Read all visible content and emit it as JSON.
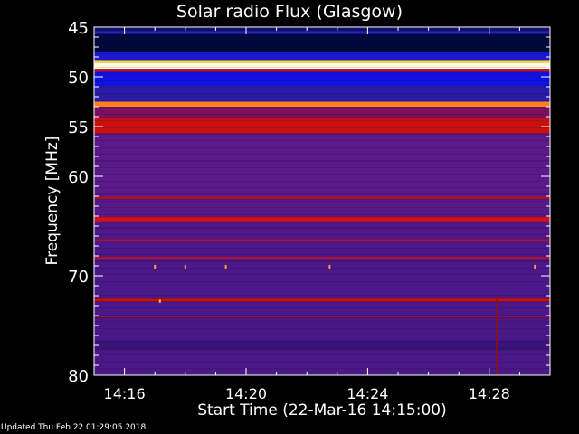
{
  "chart_data": {
    "type": "heatmap",
    "title": "Solar radio Flux (Glasgow)",
    "xlabel": "Start Time (22-Mar-16 14:15:00)",
    "ylabel": "Frequency [MHz]",
    "xlim": [
      "14:15",
      "14:30"
    ],
    "ylim": [
      45,
      80
    ],
    "y_reversed": true,
    "xticks": [
      "14:16",
      "14:20",
      "14:24",
      "14:28"
    ],
    "yticks": [
      45,
      50,
      55,
      60,
      70,
      80
    ],
    "bands": [
      {
        "f0": 45.0,
        "f1": 45.4,
        "color": "#10106a"
      },
      {
        "f0": 45.4,
        "f1": 45.7,
        "color": "#2424c8"
      },
      {
        "f0": 45.7,
        "f1": 47.5,
        "color": "#00083c"
      },
      {
        "f0": 47.5,
        "f1": 48.3,
        "color": "#1a1ad0"
      },
      {
        "f0": 48.3,
        "f1": 48.6,
        "color": "#ffd040"
      },
      {
        "f0": 48.6,
        "f1": 49.2,
        "color": "#fff8e0"
      },
      {
        "f0": 49.2,
        "f1": 49.5,
        "color": "#c01020"
      },
      {
        "f0": 49.5,
        "f1": 50.9,
        "color": "#1010e0"
      },
      {
        "f0": 50.9,
        "f1": 52.5,
        "color": "#2a1ca8"
      },
      {
        "f0": 52.5,
        "f1": 53.0,
        "color": "#ff8020"
      },
      {
        "f0": 53.0,
        "f1": 54.1,
        "color": "#7a1060"
      },
      {
        "f0": 54.1,
        "f1": 55.7,
        "color": "#c81010"
      },
      {
        "f0": 55.7,
        "f1": 62.0,
        "color": "#5a1a8a"
      },
      {
        "f0": 62.0,
        "f1": 62.3,
        "color": "#a01030"
      },
      {
        "f0": 62.3,
        "f1": 64.1,
        "color": "#561a88"
      },
      {
        "f0": 64.1,
        "f1": 64.6,
        "color": "#d81010"
      },
      {
        "f0": 64.6,
        "f1": 66.3,
        "color": "#4e1888"
      },
      {
        "f0": 66.3,
        "f1": 66.5,
        "color": "#b01030"
      },
      {
        "f0": 66.5,
        "f1": 68.1,
        "color": "#4a1888"
      },
      {
        "f0": 68.1,
        "f1": 68.3,
        "color": "#c01020"
      },
      {
        "f0": 68.3,
        "f1": 72.3,
        "color": "#4a1888"
      },
      {
        "f0": 72.3,
        "f1": 72.6,
        "color": "#c81010"
      },
      {
        "f0": 72.6,
        "f1": 74.0,
        "color": "#4a1888"
      },
      {
        "f0": 74.0,
        "f1": 74.2,
        "color": "#a01030"
      },
      {
        "f0": 74.2,
        "f1": 76.5,
        "color": "#481886"
      },
      {
        "f0": 76.5,
        "f1": 77.5,
        "color": "#3a1478"
      },
      {
        "f0": 77.5,
        "f1": 80.0,
        "color": "#4a1888"
      }
    ],
    "bursts": [
      {
        "time": "14:28:15",
        "f0": 72.0,
        "f1": 80.0,
        "color": "#8a1020"
      },
      {
        "time": "14:17:10",
        "f0": 72.4,
        "f1": 72.7,
        "color": "#ffd040"
      },
      {
        "time": "14:17:00",
        "f0": 68.9,
        "f1": 69.3,
        "color": "#ffa020"
      },
      {
        "time": "14:18:00",
        "f0": 68.9,
        "f1": 69.3,
        "color": "#ffa020"
      },
      {
        "time": "14:19:20",
        "f0": 68.9,
        "f1": 69.3,
        "color": "#ffa020"
      },
      {
        "time": "14:22:45",
        "f0": 68.9,
        "f1": 69.3,
        "color": "#ffa020"
      },
      {
        "time": "14:29:30",
        "f0": 68.9,
        "f1": 69.3,
        "color": "#ffa020"
      }
    ]
  },
  "footer": {
    "updated": "Updated Thu Feb 22 01:29:05 2018"
  }
}
